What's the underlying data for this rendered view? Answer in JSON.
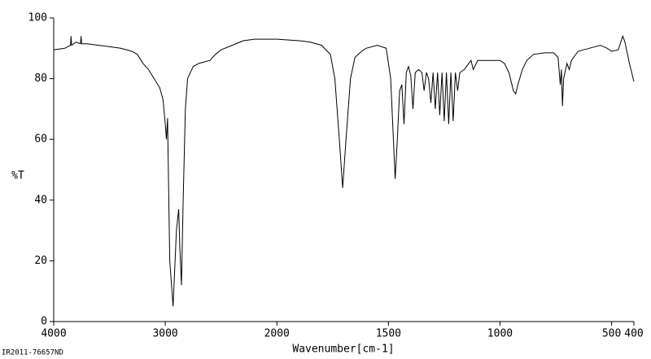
{
  "chart_data": {
    "type": "line",
    "y_label": "%T",
    "x_label": "Wavenumber[cm-1]",
    "footnote": "IR2011-76657ND",
    "xlim": [
      4000,
      400
    ],
    "ylim": [
      0,
      100
    ],
    "xticks": [
      4000,
      3000,
      2000,
      1500,
      1000,
      500,
      400
    ],
    "yticks": [
      0,
      20,
      40,
      60,
      80,
      100
    ],
    "x_scale_change": 2000,
    "grid": false,
    "series": [
      {
        "color": "#000000",
        "x": [
          4000,
          3900,
          3850,
          3845,
          3840,
          3800,
          3760,
          3755,
          3750,
          3700,
          3600,
          3500,
          3400,
          3300,
          3250,
          3200,
          3150,
          3100,
          3050,
          3020,
          3000,
          2990,
          2980,
          2960,
          2930,
          2900,
          2880,
          2870,
          2855,
          2840,
          2820,
          2800,
          2750,
          2700,
          2600,
          2550,
          2500,
          2400,
          2300,
          2200,
          2100,
          2000,
          1900,
          1850,
          1800,
          1760,
          1740,
          1720,
          1705,
          1690,
          1670,
          1650,
          1620,
          1600,
          1550,
          1510,
          1490,
          1470,
          1460,
          1450,
          1440,
          1430,
          1420,
          1410,
          1400,
          1390,
          1380,
          1365,
          1350,
          1340,
          1330,
          1320,
          1310,
          1300,
          1290,
          1280,
          1270,
          1260,
          1250,
          1240,
          1230,
          1220,
          1210,
          1200,
          1190,
          1180,
          1160,
          1150,
          1130,
          1120,
          1100,
          1050,
          1000,
          980,
          960,
          940,
          930,
          920,
          900,
          880,
          850,
          800,
          760,
          740,
          730,
          725,
          720,
          715,
          700,
          690,
          680,
          650,
          600,
          550,
          520,
          500,
          470,
          450,
          440,
          420,
          400
        ],
        "values": [
          89.5,
          90,
          91,
          94,
          91,
          92,
          91.5,
          94,
          91.5,
          91.5,
          91,
          90.5,
          90,
          89,
          88,
          85,
          83,
          80,
          77,
          73,
          65,
          60,
          67,
          20,
          5,
          30,
          37,
          25,
          12,
          40,
          70,
          80,
          84,
          85,
          86,
          88,
          89.5,
          91,
          92.5,
          93,
          93,
          93,
          92.5,
          92,
          91,
          88,
          80,
          60,
          44,
          60,
          80,
          87,
          89,
          90,
          91,
          90,
          80,
          47,
          60,
          76,
          78,
          65,
          82,
          84,
          81,
          70,
          82,
          83,
          82,
          76,
          82,
          80,
          72,
          82,
          70,
          82,
          68,
          82,
          66,
          82,
          65,
          82,
          66,
          82,
          76,
          82,
          83,
          84,
          86,
          83,
          86,
          86,
          86,
          85,
          82,
          76,
          75,
          78,
          83,
          86,
          88,
          88.5,
          88.5,
          87,
          78,
          83,
          71,
          80,
          85,
          83,
          86,
          89,
          90,
          91,
          90,
          89,
          89.5,
          94,
          92,
          85,
          79
        ]
      }
    ]
  }
}
